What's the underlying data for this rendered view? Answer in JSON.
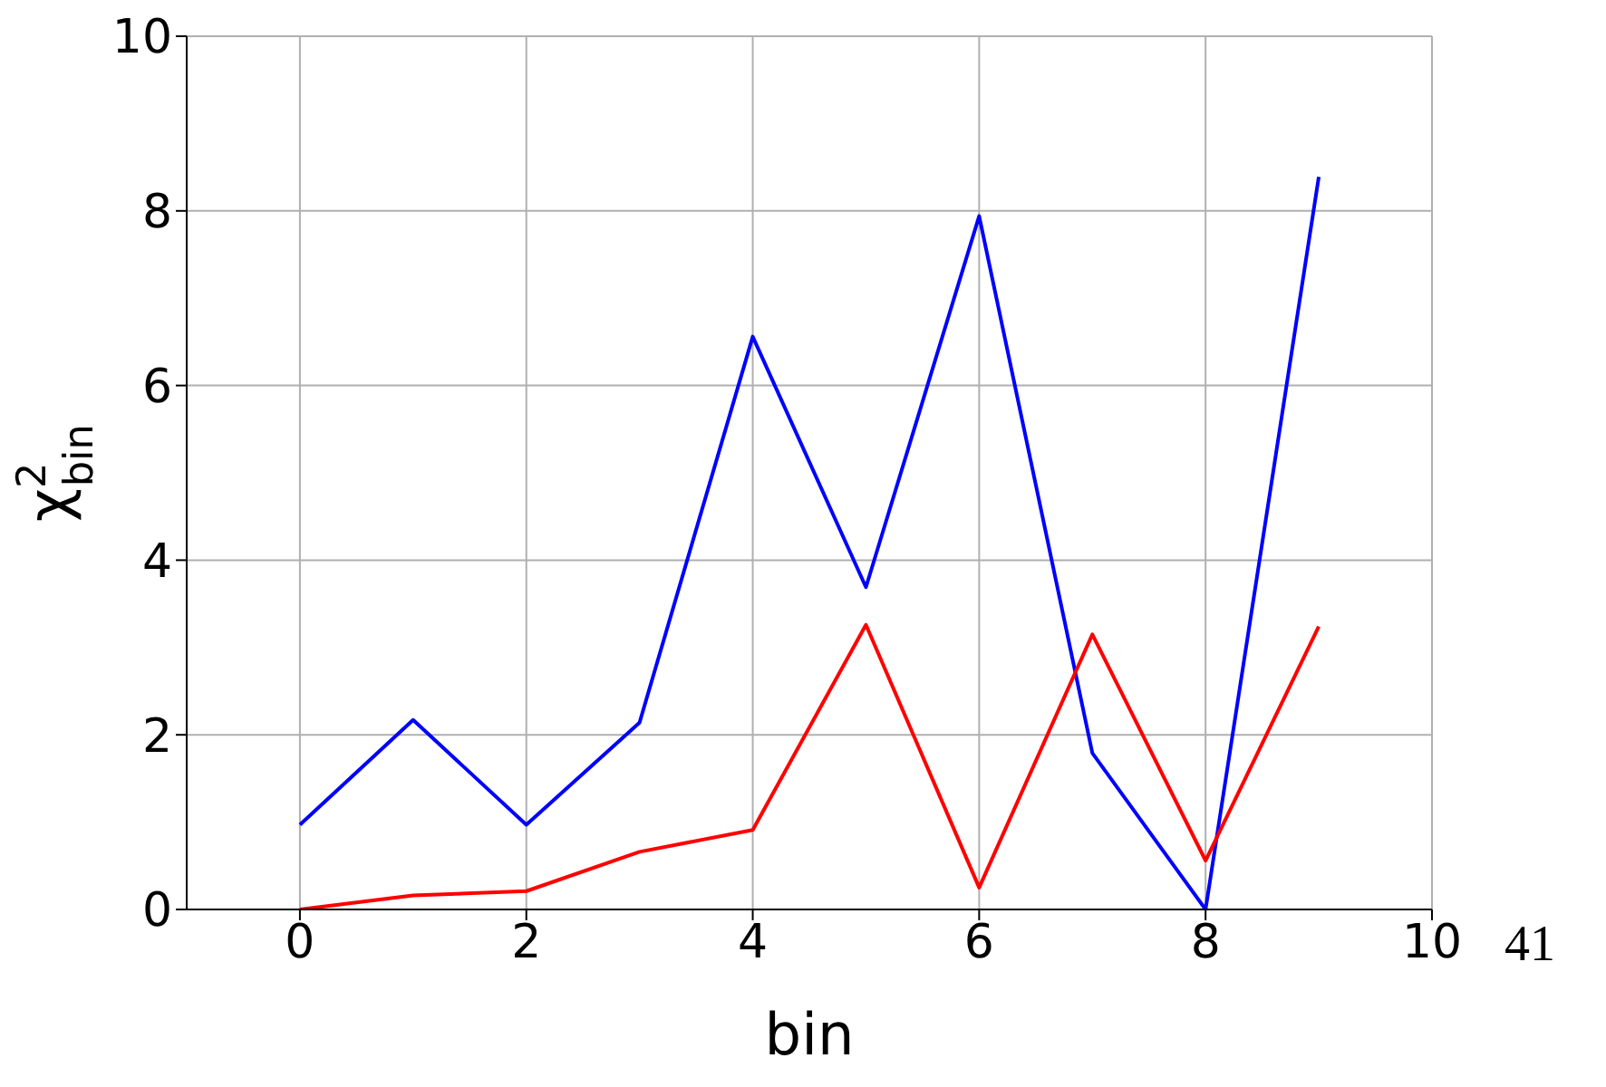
{
  "chart_data": {
    "type": "line",
    "xlabel": "bin",
    "ylabel": "χ$^{2}$$_{bin}$",
    "x": [
      0,
      1,
      2,
      3,
      4,
      5,
      6,
      7,
      8,
      9
    ],
    "series": [
      {
        "color": "#0000ff",
        "values": [
          0.97,
          2.17,
          0.97,
          2.14,
          6.56,
          3.69,
          7.94,
          1.79,
          0,
          8.39
        ]
      },
      {
        "color": "#ff0000",
        "values": [
          0,
          0.16,
          0.21,
          0.66,
          0.91,
          3.26,
          0.25,
          3.15,
          0.56,
          3.24
        ]
      }
    ],
    "xlim": [
      -1,
      10
    ],
    "xticks": [
      0,
      2,
      4,
      6,
      8,
      10
    ],
    "ylim": [
      0,
      10
    ],
    "yticks": [
      0,
      2,
      4,
      6,
      8,
      10
    ],
    "grid": true,
    "legend": false,
    "marker": "none",
    "line_style": "solid",
    "annotations": [
      "41"
    ]
  }
}
